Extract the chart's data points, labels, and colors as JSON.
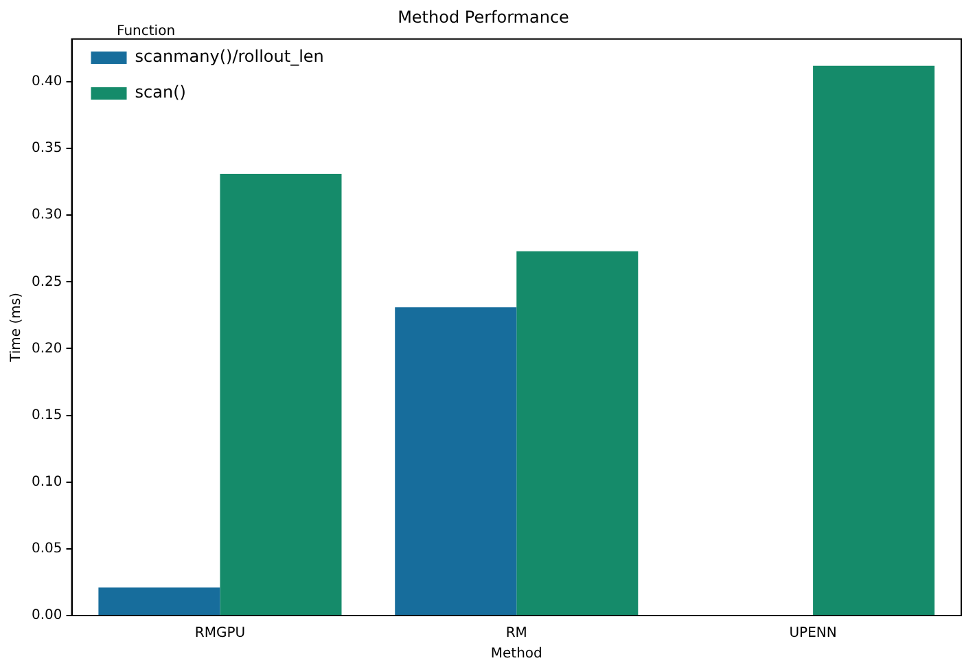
{
  "chart_data": {
    "type": "bar",
    "title": "Method Performance",
    "xlabel": "Method",
    "ylabel": "Time (ms)",
    "legend_title": "Function",
    "categories": [
      "RMGPU",
      "RM",
      "UPENN"
    ],
    "series": [
      {
        "name": "scanmany()/rollout_len",
        "color": "#176d9c",
        "values": [
          0.021,
          0.231,
          null
        ]
      },
      {
        "name": "scan()",
        "color": "#158b6a",
        "values": [
          0.331,
          0.273,
          0.412
        ]
      }
    ],
    "ylim": [
      0,
      0.432
    ],
    "yticks": [
      {
        "value": 0,
        "label": "0.00"
      },
      {
        "value": 0.05,
        "label": "0.05"
      },
      {
        "value": 0.1,
        "label": "0.10"
      },
      {
        "value": 0.15,
        "label": "0.15"
      },
      {
        "value": 0.2,
        "label": "0.20"
      },
      {
        "value": 0.25,
        "label": "0.25"
      },
      {
        "value": 0.3,
        "label": "0.30"
      },
      {
        "value": 0.35,
        "label": "0.35"
      },
      {
        "value": 0.4,
        "label": "0.40"
      }
    ],
    "grid": false,
    "legend": "top left"
  }
}
